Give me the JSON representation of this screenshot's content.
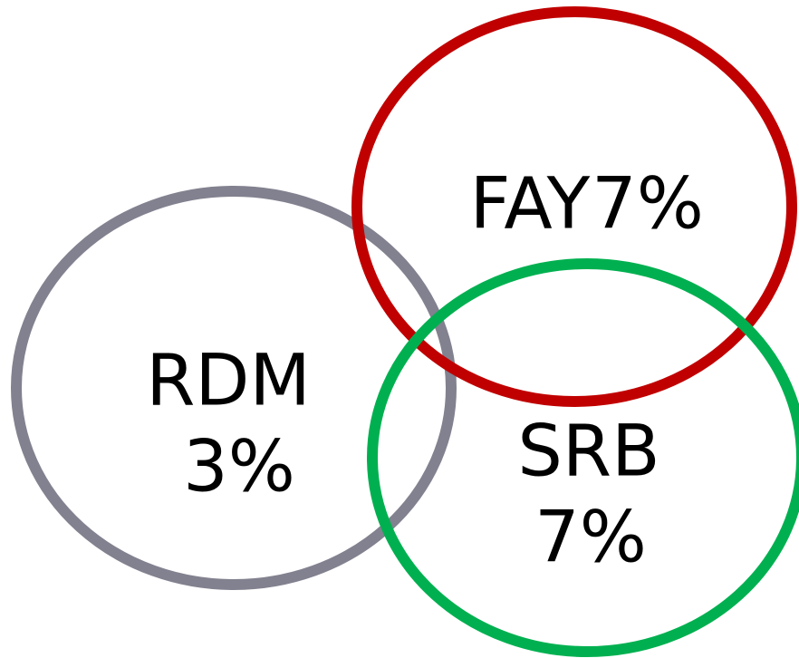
{
  "nodes": [
    {
      "name": "RDM",
      "value": "3%"
    },
    {
      "name": "FAY",
      "value": "7%"
    },
    {
      "name": "SRB",
      "value": "7%"
    }
  ]
}
